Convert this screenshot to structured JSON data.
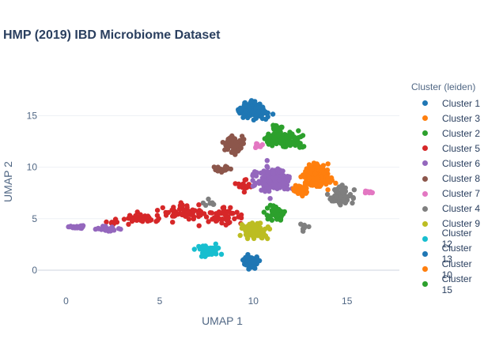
{
  "chart_data": {
    "type": "scatter",
    "title": "HMP (2019) IBD Microbiome Dataset",
    "xlabel": "UMAP 1",
    "ylabel": "UMAP 2",
    "xlim": [
      -1.5,
      17.8
    ],
    "ylim": [
      -1.0,
      17.8
    ],
    "x_ticks": [
      0,
      5,
      10,
      15
    ],
    "y_ticks": [
      0,
      5,
      10,
      15
    ],
    "grid": true,
    "legend_title": "Cluster (leiden)",
    "legend_position": "right",
    "series": [
      {
        "name": "Cluster 1",
        "color": "#1f77b4",
        "clusters": [
          [
            10.0,
            15.5,
            0.75,
            0.7,
            140
          ]
        ]
      },
      {
        "name": "Cluster 3",
        "color": "#ff7f0e",
        "clusters": [
          [
            13.3,
            9.1,
            0.85,
            1.0,
            170
          ]
        ]
      },
      {
        "name": "Cluster 2",
        "color": "#2ca02c",
        "clusters": [
          [
            11.7,
            12.7,
            1.0,
            0.65,
            120
          ],
          [
            11.2,
            5.6,
            0.55,
            0.6,
            50
          ]
        ]
      },
      {
        "name": "Cluster 5",
        "color": "#d62728",
        "clusters": [
          [
            6.2,
            5.6,
            1.2,
            0.8,
            60
          ],
          [
            8.6,
            5.3,
            0.8,
            0.8,
            50
          ],
          [
            4.0,
            5.0,
            1.0,
            0.45,
            40
          ],
          [
            9.5,
            8.0,
            0.35,
            0.6,
            20
          ],
          [
            2.7,
            4.6,
            0.4,
            0.2,
            10
          ]
        ]
      },
      {
        "name": "Cluster 6",
        "color": "#9467bd",
        "clusters": [
          [
            11.0,
            8.8,
            0.9,
            1.2,
            180
          ],
          [
            0.6,
            4.2,
            0.45,
            0.15,
            25
          ],
          [
            2.3,
            4.0,
            0.55,
            0.2,
            35
          ]
        ]
      },
      {
        "name": "Cluster 8",
        "color": "#8c564b",
        "clusters": [
          [
            9.0,
            12.2,
            0.7,
            0.9,
            60
          ],
          [
            8.3,
            9.8,
            0.45,
            0.35,
            25
          ]
        ]
      },
      {
        "name": "Cluster 7",
        "color": "#e377c2",
        "clusters": [
          [
            16.2,
            7.6,
            0.35,
            0.12,
            12
          ],
          [
            10.2,
            12.1,
            0.25,
            0.35,
            10
          ]
        ]
      },
      {
        "name": "Cluster 4",
        "color": "#7f7f7f",
        "clusters": [
          [
            14.7,
            7.1,
            0.55,
            0.9,
            70
          ],
          [
            7.6,
            6.5,
            0.35,
            0.25,
            8
          ],
          [
            12.7,
            4.2,
            0.25,
            0.3,
            8
          ]
        ]
      },
      {
        "name": "Cluster 9",
        "color": "#bcbd22",
        "clusters": [
          [
            10.1,
            3.8,
            0.6,
            0.7,
            110
          ]
        ]
      },
      {
        "name": "Cluster 12",
        "color": "#17becf",
        "clusters": [
          [
            7.6,
            1.9,
            0.6,
            0.6,
            50
          ]
        ]
      },
      {
        "name": "Cluster 13",
        "color": "#1f77b4",
        "clusters": [
          [
            9.9,
            0.8,
            0.45,
            0.5,
            60
          ]
        ]
      },
      {
        "name": "Cluster 10",
        "color": "#ff7f0e",
        "clusters": [
          [
            12.5,
            7.8,
            0.5,
            0.5,
            40
          ]
        ]
      },
      {
        "name": "Cluster 15",
        "color": "#2ca02c",
        "clusters": [
          [
            11.3,
            13.8,
            0.4,
            0.3,
            25
          ]
        ]
      }
    ]
  }
}
